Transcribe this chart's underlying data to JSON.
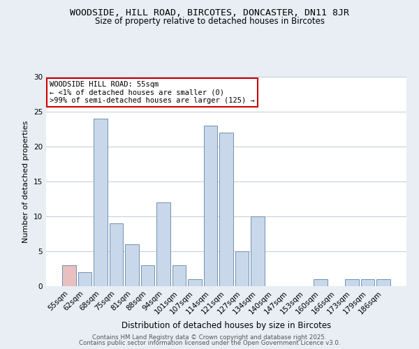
{
  "title": "WOODSIDE, HILL ROAD, BIRCOTES, DONCASTER, DN11 8JR",
  "subtitle": "Size of property relative to detached houses in Bircotes",
  "xlabel": "Distribution of detached houses by size in Bircotes",
  "ylabel": "Number of detached properties",
  "bar_labels": [
    "55sqm",
    "62sqm",
    "68sqm",
    "75sqm",
    "81sqm",
    "88sqm",
    "94sqm",
    "101sqm",
    "107sqm",
    "114sqm",
    "121sqm",
    "127sqm",
    "134sqm",
    "140sqm",
    "147sqm",
    "153sqm",
    "160sqm",
    "166sqm",
    "173sqm",
    "179sqm",
    "186sqm"
  ],
  "bar_values": [
    3,
    2,
    24,
    9,
    6,
    3,
    12,
    3,
    1,
    23,
    22,
    5,
    10,
    0,
    0,
    0,
    1,
    0,
    1,
    1,
    1
  ],
  "bar_color": "#c8d8ea",
  "highlight_bar_color": "#e8c0c0",
  "highlight_index": 0,
  "ylim": [
    0,
    30
  ],
  "yticks": [
    0,
    5,
    10,
    15,
    20,
    25,
    30
  ],
  "annotation_line1": "WOODSIDE HILL ROAD: 55sqm",
  "annotation_line2": "← <1% of detached houses are smaller (0)",
  "annotation_line3": ">99% of semi-detached houses are larger (125) →",
  "footer1": "Contains HM Land Registry data © Crown copyright and database right 2025.",
  "footer2": "Contains public sector information licensed under the Open Government Licence v3.0.",
  "bg_color": "#e8eef4",
  "plot_bg_color": "#ffffff",
  "grid_color": "#c0ccd8",
  "title_fontsize": 9.5,
  "subtitle_fontsize": 8.5,
  "annotation_box_edgecolor": "#cc0000",
  "annotation_box_facecolor": "#ffffff",
  "bar_edgecolor": "#7090b0",
  "ylabel_fontsize": 8,
  "xlabel_fontsize": 8.5
}
